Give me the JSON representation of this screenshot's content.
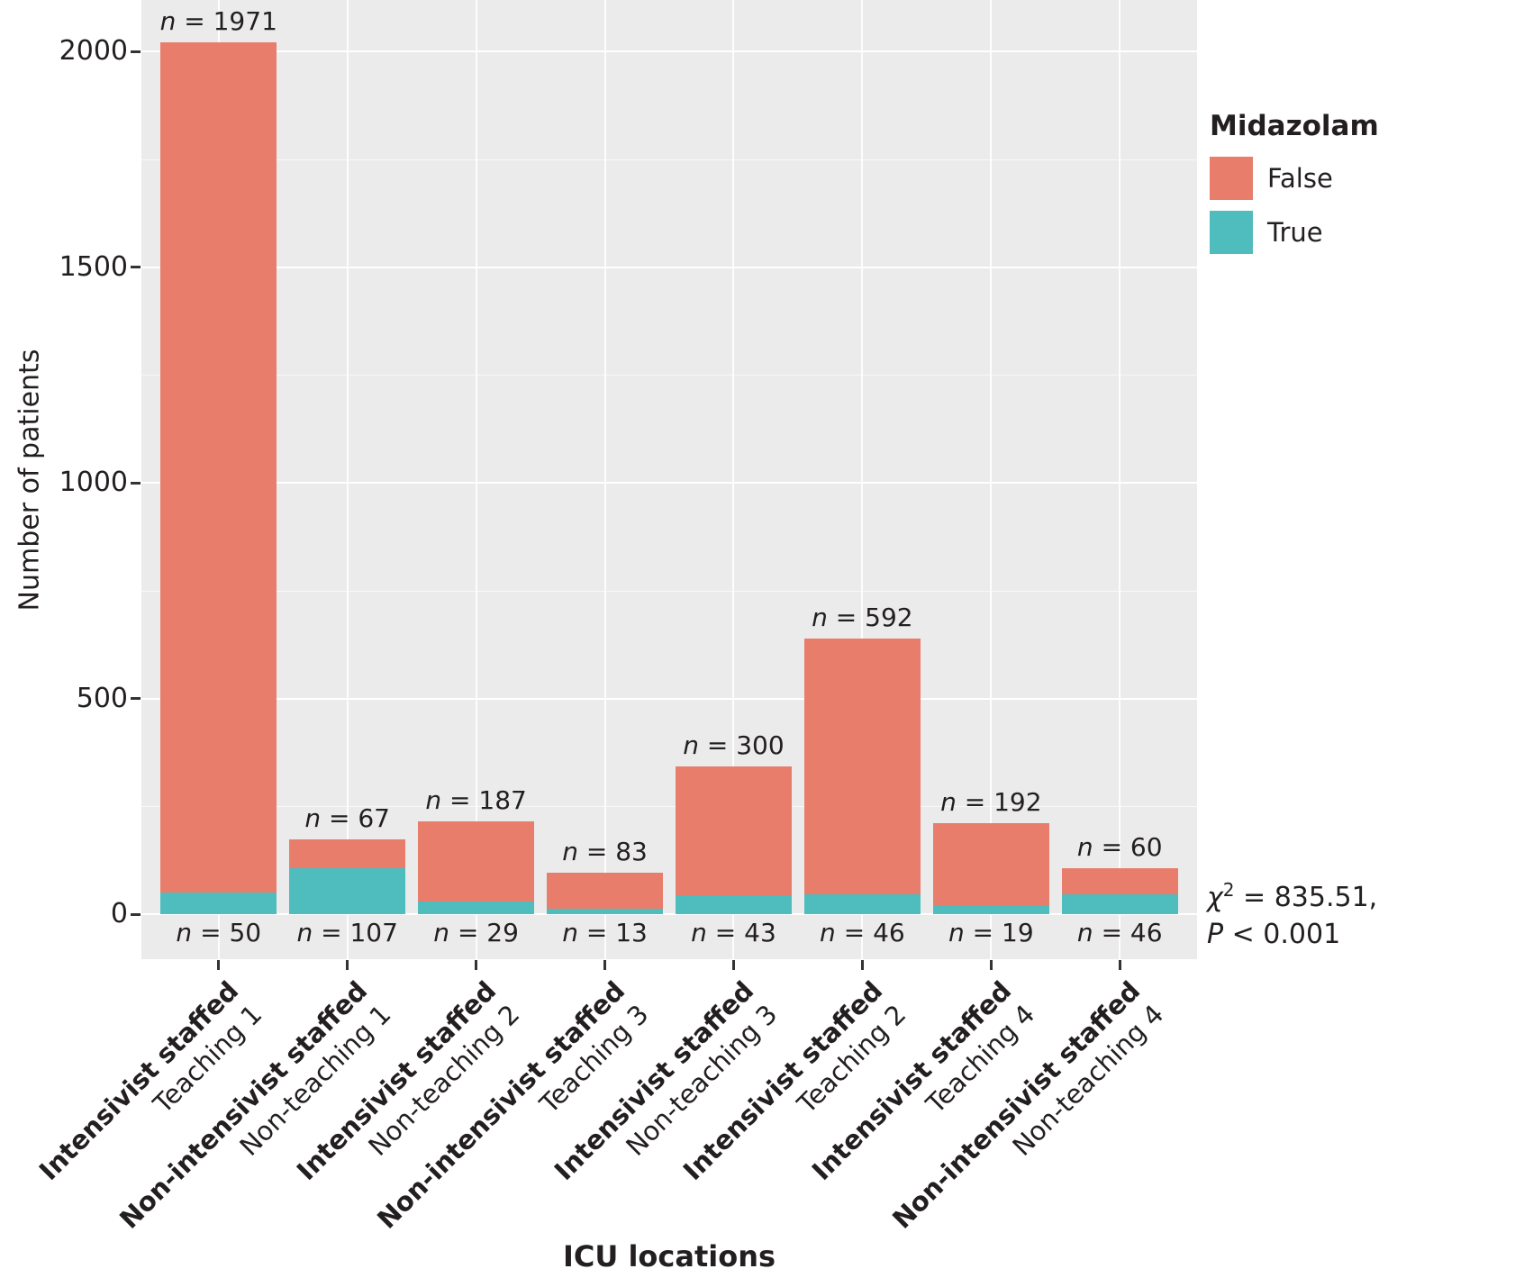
{
  "chart_data": {
    "type": "bar",
    "stacked": true,
    "title": "",
    "xlabel": "ICU locations",
    "ylabel": "Number of patients",
    "ylim": [
      -104,
      2119
    ],
    "yticks": [
      0,
      500,
      1000,
      1500,
      2000
    ],
    "ytick_labels": [
      "0",
      "500",
      "1000",
      "1500",
      "2000"
    ],
    "yminor": [
      250,
      750,
      1250,
      1750
    ],
    "grid": true,
    "categories": [
      {
        "unit": "Intensivist staffed",
        "hospital": "Teaching 1"
      },
      {
        "unit": "Non-intensivist staffed",
        "hospital": "Non-teaching 1"
      },
      {
        "unit": "Intensivist staffed",
        "hospital": "Non-teaching 2"
      },
      {
        "unit": "Non-intensivist staffed",
        "hospital": "Teaching 3"
      },
      {
        "unit": "Intensivist staffed",
        "hospital": "Non-teaching 3"
      },
      {
        "unit": "Intensivist staffed",
        "hospital": "Teaching 2"
      },
      {
        "unit": "Intensivist staffed",
        "hospital": "Teaching 4"
      },
      {
        "unit": "Non-intensivist staffed",
        "hospital": "Non-teaching 4"
      }
    ],
    "series": [
      {
        "name": "False",
        "color": "#e87d6c",
        "values": [
          1971,
          67,
          187,
          83,
          300,
          592,
          192,
          60
        ]
      },
      {
        "name": "True",
        "color": "#4fbcbe",
        "values": [
          50,
          107,
          29,
          13,
          43,
          46,
          19,
          46
        ]
      }
    ],
    "bar_labels_top": [
      "n = 1971",
      "n = 67",
      "n = 187",
      "n = 83",
      "n = 300",
      "n = 592",
      "n = 192",
      "n = 60"
    ],
    "bar_labels_bottom": [
      "n = 50",
      "n = 107",
      "n = 29",
      "n = 13",
      "n = 43",
      "n = 46",
      "n = 19",
      "n = 46"
    ],
    "legend": {
      "title": "Midazolam",
      "position": "right",
      "entries": [
        {
          "label": "False",
          "color": "#e87d6c"
        },
        {
          "label": "True",
          "color": "#4fbcbe"
        }
      ]
    },
    "annotation": {
      "chi_symbol": "χ",
      "chi_sup": "2",
      "chi_rest": " = 835.51,",
      "p_symbol": "P",
      "p_rest": " < 0.001"
    },
    "colors": {
      "panel_background": "#ebebeb",
      "gridline": "#ffffff",
      "text": "#231f20",
      "tick": "#333333"
    }
  }
}
